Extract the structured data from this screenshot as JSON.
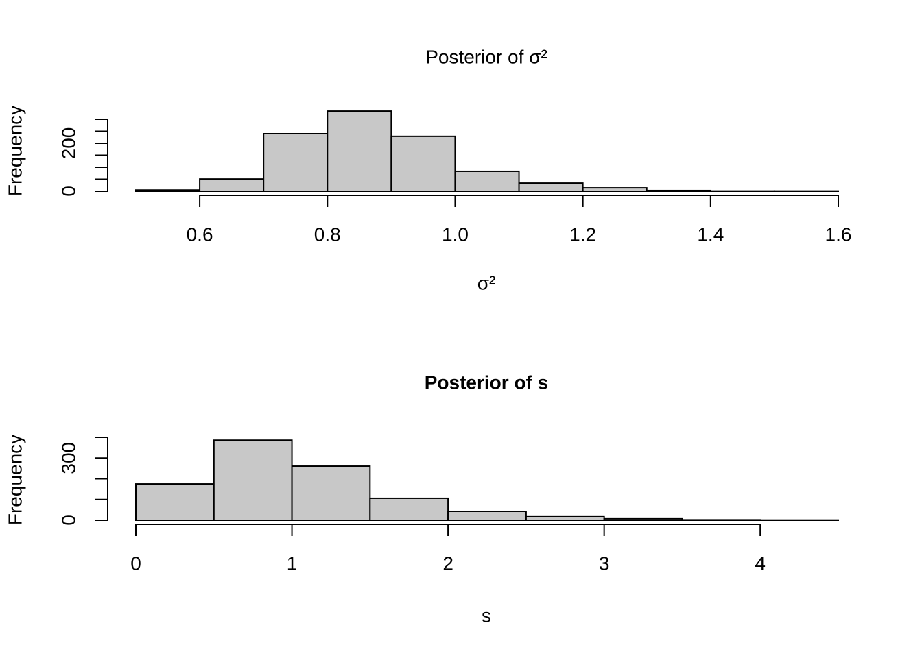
{
  "chart_data": [
    {
      "type": "histogram",
      "title": "Posterior of σ²",
      "title_bold": false,
      "xlabel": "σ²",
      "ylabel": "Frequency",
      "bins": [
        0.5,
        0.6,
        0.7,
        0.8,
        0.9,
        1.0,
        1.1,
        1.2,
        1.3,
        1.4,
        1.5,
        1.6
      ],
      "values": [
        5,
        51,
        240,
        334,
        229,
        83,
        34,
        14,
        3,
        1,
        1
      ],
      "color": "#c8c8c8",
      "xlim": [
        0.5,
        1.6
      ],
      "ylim": [
        0,
        340
      ],
      "xticks": [
        0.6,
        0.8,
        {
          "value": 1,
          "label": "1.0"
        },
        1.2,
        1.4,
        1.6
      ],
      "yticks": [
        0,
        200
      ],
      "yminorticks": [
        50,
        100,
        150,
        250,
        300
      ]
    },
    {
      "type": "histogram",
      "title": "Posterior of s",
      "title_bold": true,
      "xlabel": "s",
      "ylabel": "Frequency",
      "bins": [
        0,
        0.5,
        1,
        1.5,
        2,
        2.5,
        3,
        3.5,
        4,
        4.5
      ],
      "values": [
        175,
        386,
        261,
        106,
        43,
        17,
        7,
        2,
        1
      ],
      "color": "#c8c8c8",
      "xlim": [
        0,
        4.5
      ],
      "ylim": [
        0,
        400
      ],
      "xticks": [
        0,
        1,
        2,
        3,
        4
      ],
      "yticks": [
        0,
        300
      ],
      "yminorticks": [
        100,
        200,
        400
      ]
    }
  ]
}
